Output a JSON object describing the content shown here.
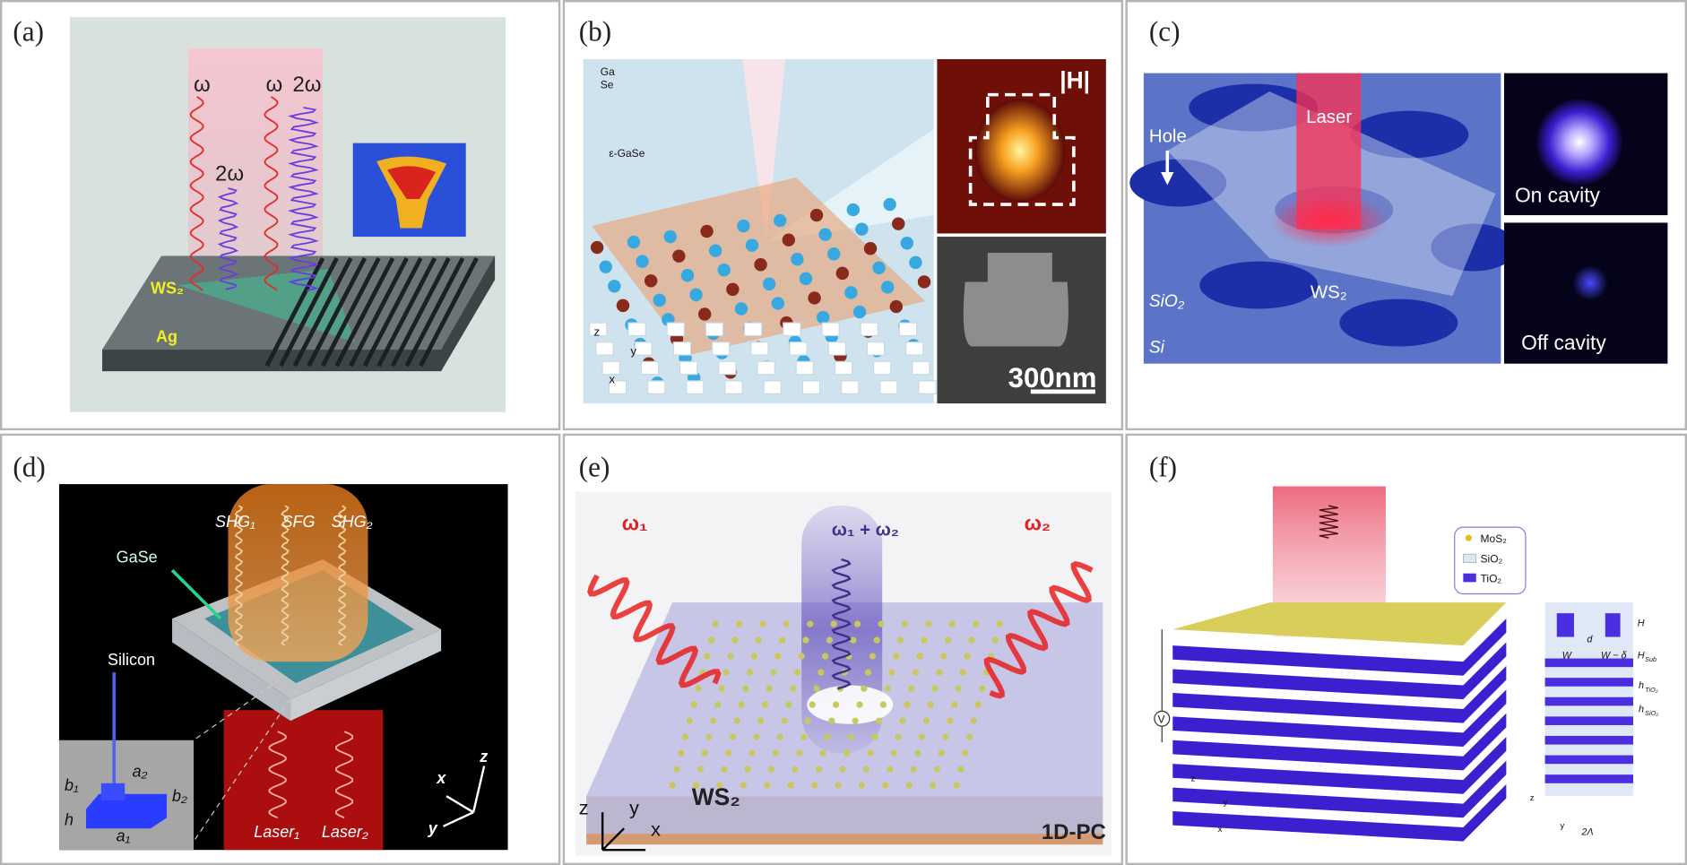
{
  "panels": [
    {
      "label": "(a)",
      "texts": [
        "ω",
        "ω",
        "2ω",
        "2ω",
        "WS₂",
        "Ag"
      ]
    },
    {
      "label": "(b)",
      "texts": [
        "Ga",
        "Se",
        "ε-GaSe",
        "|H|",
        "300nm",
        "z",
        "y",
        "x"
      ]
    },
    {
      "label": "(c)",
      "texts": [
        "Hole",
        "Laser",
        "WS₂",
        "SiO₂",
        "Si",
        "On cavity",
        "Off cavity"
      ]
    },
    {
      "label": "(d)",
      "texts": [
        "SHG₁",
        "SFG",
        "SHG₂",
        "GaSe",
        "Silicon",
        "b₁",
        "a₂",
        "b₂",
        "h",
        "a₁",
        "Laser₁",
        "Laser₂",
        "x",
        "y",
        "z"
      ]
    },
    {
      "label": "(e)",
      "texts": [
        "ω₁",
        "ω₁ + ω₂",
        "ω₂",
        "WS₂",
        "z",
        "y",
        "x",
        "1D-PC"
      ]
    },
    {
      "label": "(f)",
      "texts": [
        "MoS₂",
        "SiO₂",
        "TiO₂",
        "V",
        "H",
        "d",
        "W",
        "W − δ",
        "H",
        "Sub",
        "h",
        "TiO₂",
        "h",
        "SiO₂",
        "2Λ",
        "z",
        "y",
        "z",
        "y",
        "x"
      ]
    }
  ]
}
